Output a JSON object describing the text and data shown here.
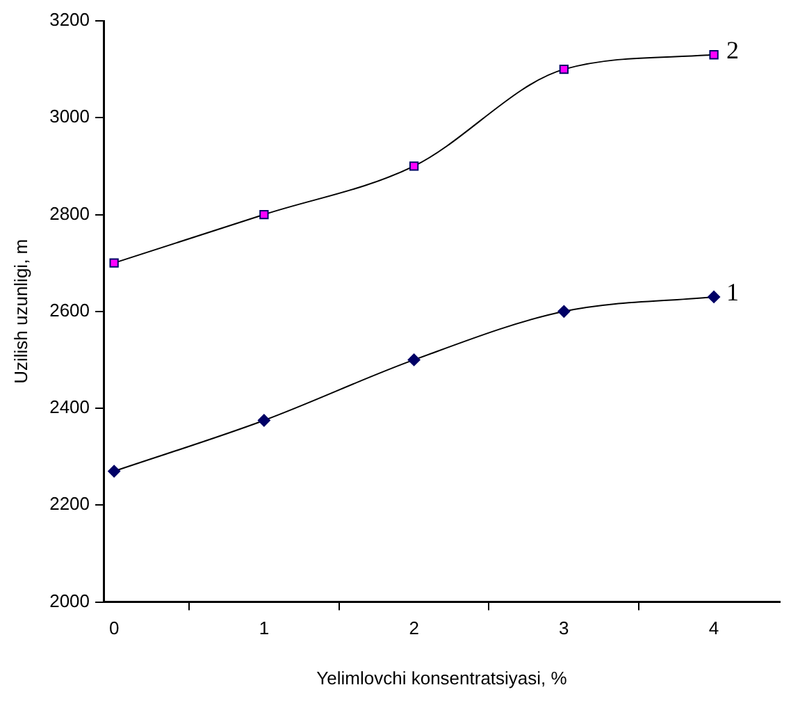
{
  "chart_data": {
    "type": "line",
    "xlabel": "Yelimlovchi konsentratsiyasi, %",
    "ylabel": "Uzilish uzunligi, m",
    "x": [
      0,
      1,
      2,
      3,
      4
    ],
    "series": [
      {
        "name": "1",
        "color": "#000066",
        "marker": "diamond",
        "values": [
          2270,
          2375,
          2500,
          2600,
          2630
        ]
      },
      {
        "name": "2",
        "color": "#ff00ff",
        "marker": "square",
        "values": [
          2700,
          2800,
          2900,
          3100,
          3130
        ]
      }
    ],
    "xlim": [
      -0.07,
      4.44
    ],
    "xticks": [
      0,
      {
        "value": 0.5,
        "label": null
      },
      1,
      {
        "value": 1.5,
        "label": null
      },
      2,
      {
        "value": 2.5,
        "label": null
      },
      3,
      {
        "value": 3.5,
        "label": null
      },
      4
    ],
    "ylim": [
      2000,
      3200
    ],
    "yticks": [
      2000,
      2200,
      2400,
      2600,
      2800,
      3000,
      3200
    ],
    "grid": false,
    "legend": false
  }
}
